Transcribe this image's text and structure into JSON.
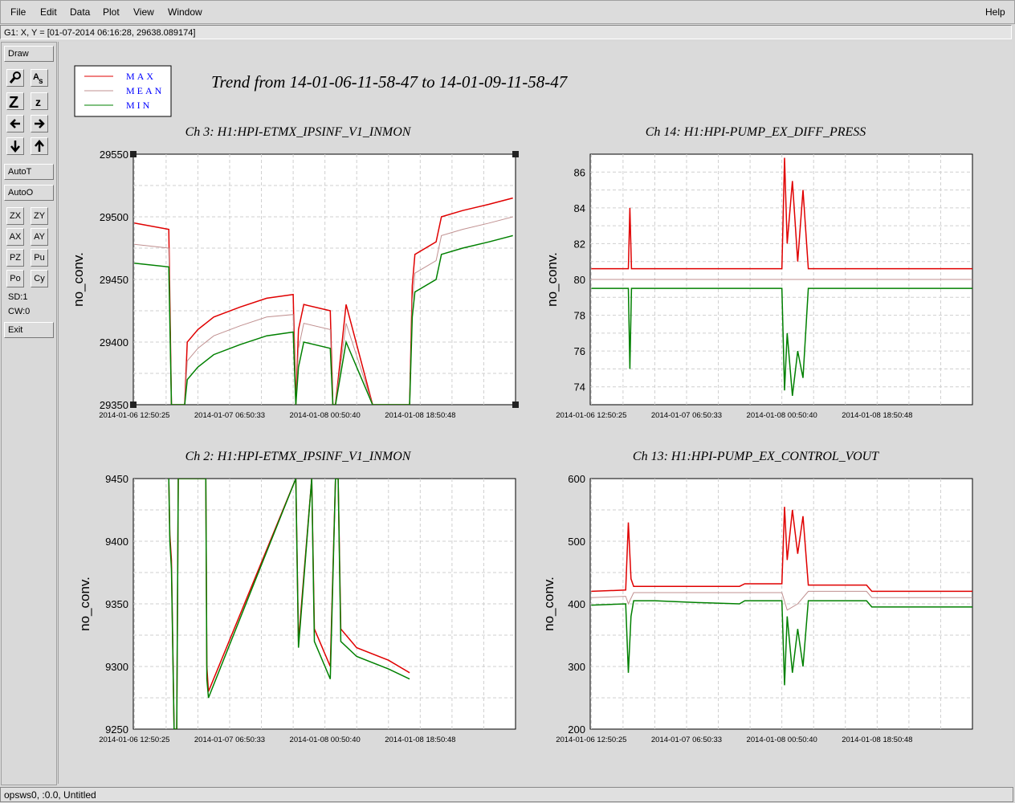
{
  "menubar": {
    "items": [
      "File",
      "Edit",
      "Data",
      "Plot",
      "View",
      "Window"
    ],
    "help": "Help"
  },
  "coord_readout": "G1: X, Y = [01-07-2014 06:16:28, 29638.089174]",
  "toolbar": {
    "draw": "Draw",
    "autot": "AutoT",
    "autoo": "AutoO",
    "grid_buttons": [
      "ZX",
      "ZY",
      "AX",
      "AY",
      "PZ",
      "Pu",
      "Po",
      "Cy"
    ],
    "sd": "SD:1",
    "cw": "CW:0",
    "exit": "Exit"
  },
  "legend": [
    {
      "label": "MAX",
      "color": "#e00000"
    },
    {
      "label": "MEAN",
      "color": "#c09090"
    },
    {
      "label": "MIN",
      "color": "#008000"
    }
  ],
  "legend_text_color": "#0000ff",
  "main_title": "Trend from 14-01-06-11-58-47 to 14-01-09-11-58-47",
  "status": "opsws0, :0.0, Untitled",
  "chart_data": [
    {
      "type": "line",
      "title": "Ch 3: H1:HPI-ETMX_IPSINF_V1_INMON",
      "ylabel": "no_conv.",
      "ylim": [
        29350,
        29550
      ],
      "yticks": [
        29350,
        29400,
        29450,
        29500,
        29550
      ],
      "xticks": [
        "2014-01-06 12:50:25",
        "2014-01-07 06:50:33",
        "2014-01-08 00:50:40",
        "2014-01-08 18:50:48"
      ],
      "x_hours_unit": "hours from 2014-01-06 12:50:25",
      "xlim": [
        -0.2,
        72
      ],
      "series": [
        {
          "name": "MAX",
          "x": [
            0,
            6.5,
            7,
            9.5,
            10,
            12,
            15,
            20,
            25,
            30,
            30.5,
            31,
            32,
            37,
            37.5,
            38,
            40,
            45,
            52,
            52.5,
            53,
            57,
            58,
            62,
            67,
            71.5
          ],
          "y": [
            29495,
            29490,
            29350,
            29350,
            29400,
            29410,
            29420,
            29428,
            29435,
            29438,
            29350,
            29410,
            29430,
            29425,
            29350,
            29350,
            29430,
            29350,
            29350,
            29445,
            29470,
            29480,
            29500,
            29505,
            29510,
            29515
          ]
        },
        {
          "name": "MEAN",
          "x": [
            0,
            6.5,
            7,
            9.5,
            10,
            12,
            15,
            20,
            25,
            30,
            30.5,
            31,
            32,
            37,
            37.5,
            38,
            40,
            45,
            52,
            52.5,
            53,
            57,
            58,
            62,
            67,
            71.5
          ],
          "y": [
            29478,
            29475,
            29350,
            29350,
            29385,
            29395,
            29405,
            29413,
            29420,
            29422,
            29350,
            29395,
            29415,
            29410,
            29350,
            29350,
            29415,
            29350,
            29350,
            29432,
            29455,
            29465,
            29485,
            29490,
            29495,
            29500
          ]
        },
        {
          "name": "MIN",
          "x": [
            0,
            6.5,
            7,
            9.5,
            10,
            12,
            15,
            20,
            25,
            30,
            30.5,
            31,
            32,
            37,
            37.5,
            38,
            40,
            45,
            52,
            52.5,
            53,
            57,
            58,
            62,
            67,
            71.5
          ],
          "y": [
            29463,
            29460,
            29350,
            29350,
            29370,
            29380,
            29390,
            29398,
            29405,
            29408,
            29350,
            29380,
            29400,
            29395,
            29350,
            29350,
            29400,
            29350,
            29350,
            29420,
            29440,
            29450,
            29470,
            29475,
            29480,
            29485
          ]
        }
      ]
    },
    {
      "type": "line",
      "title": "Ch 14: H1:HPI-PUMP_EX_DIFF_PRESS",
      "ylabel": "no_conv.",
      "ylim": [
        73,
        87
      ],
      "yticks": [
        74,
        76,
        78,
        80,
        82,
        84,
        86
      ],
      "xticks": [
        "2014-01-06 12:50:25",
        "2014-01-07 06:50:33",
        "2014-01-08 00:50:40",
        "2014-01-08 18:50:48"
      ],
      "xlim": [
        -0.2,
        72
      ],
      "series": [
        {
          "name": "MAX",
          "x": [
            0,
            7,
            7.3,
            7.6,
            8,
            36,
            36.5,
            37,
            38,
            39,
            40,
            41,
            72
          ],
          "y": [
            80.6,
            80.6,
            84,
            80.6,
            80.6,
            80.6,
            86.8,
            82,
            85.5,
            81,
            85,
            80.6,
            80.6
          ]
        },
        {
          "name": "MEAN",
          "x": [
            0,
            72
          ],
          "y": [
            80.0,
            80.0
          ]
        },
        {
          "name": "MIN",
          "x": [
            0,
            7,
            7.3,
            7.6,
            8,
            36,
            36.5,
            37,
            38,
            39,
            40,
            41,
            72
          ],
          "y": [
            79.5,
            79.5,
            75,
            79.5,
            79.5,
            79.5,
            73.8,
            77,
            73.5,
            76,
            74.5,
            79.5,
            79.5
          ]
        }
      ]
    },
    {
      "type": "line",
      "title": "Ch 2: H1:HPI-ETMX_IPSINF_V1_INMON",
      "ylabel": "no_conv.",
      "ylim": [
        9250,
        9450
      ],
      "yticks": [
        9250,
        9300,
        9350,
        9400,
        9450
      ],
      "xticks": [
        "2014-01-06 12:50:25",
        "2014-01-07 06:50:33",
        "2014-01-08 00:50:40",
        "2014-01-08 18:50:48"
      ],
      "xlim": [
        -0.2,
        72
      ],
      "series": [
        {
          "name": "MAX",
          "x": [
            6.5,
            6.7,
            7,
            7.5,
            8,
            8.3,
            13.5,
            13.7,
            14,
            30.5,
            31,
            33.5,
            34,
            36,
            37,
            38,
            38.5,
            39,
            42,
            48,
            52
          ],
          "y": [
            9450,
            9405,
            9385,
            9250,
            9250,
            9450,
            9450,
            9300,
            9280,
            9450,
            9320,
            9450,
            9330,
            9310,
            9300,
            9450,
            9450,
            9330,
            9315,
            9305,
            9295
          ]
        },
        {
          "name": "MIN",
          "x": [
            6.5,
            6.7,
            7,
            7.5,
            8,
            8.3,
            13.5,
            13.7,
            14,
            30.5,
            31,
            33.5,
            34,
            36,
            37,
            38,
            38.5,
            39,
            42,
            48,
            52
          ],
          "y": [
            9450,
            9400,
            9378,
            9250,
            9250,
            9450,
            9450,
            9290,
            9275,
            9450,
            9315,
            9450,
            9320,
            9300,
            9290,
            9450,
            9450,
            9320,
            9308,
            9298,
            9290
          ]
        }
      ]
    },
    {
      "type": "line",
      "title": "Ch 13: H1:HPI-PUMP_EX_CONTROL_VOUT",
      "ylabel": "no_conv.",
      "ylim": [
        200,
        600
      ],
      "yticks": [
        200,
        300,
        400,
        500,
        600
      ],
      "xticks": [
        "2014-01-06 12:50:25",
        "2014-01-07 06:50:33",
        "2014-01-08 00:50:40",
        "2014-01-08 18:50:48"
      ],
      "xlim": [
        -0.2,
        72
      ],
      "series": [
        {
          "name": "MAX",
          "x": [
            0,
            6.5,
            7,
            7.5,
            8,
            12,
            20,
            28,
            29,
            36,
            36.5,
            37,
            38,
            39,
            40,
            41,
            52,
            53,
            72
          ],
          "y": [
            420,
            422,
            530,
            440,
            428,
            428,
            428,
            428,
            432,
            432,
            555,
            470,
            550,
            480,
            540,
            430,
            430,
            420,
            420
          ]
        },
        {
          "name": "MEAN",
          "x": [
            0,
            6.5,
            7,
            8,
            12,
            20,
            28,
            36,
            37,
            39,
            41,
            52,
            53,
            72
          ],
          "y": [
            410,
            412,
            400,
            418,
            418,
            418,
            418,
            418,
            390,
            400,
            420,
            420,
            410,
            410
          ]
        },
        {
          "name": "MIN",
          "x": [
            0,
            6.5,
            7,
            7.5,
            8,
            12,
            20,
            28,
            29,
            36,
            36.5,
            37,
            38,
            39,
            40,
            41,
            52,
            53,
            72
          ],
          "y": [
            398,
            400,
            290,
            380,
            405,
            405,
            402,
            400,
            405,
            405,
            270,
            380,
            290,
            360,
            300,
            405,
            405,
            395,
            395
          ]
        }
      ]
    }
  ]
}
